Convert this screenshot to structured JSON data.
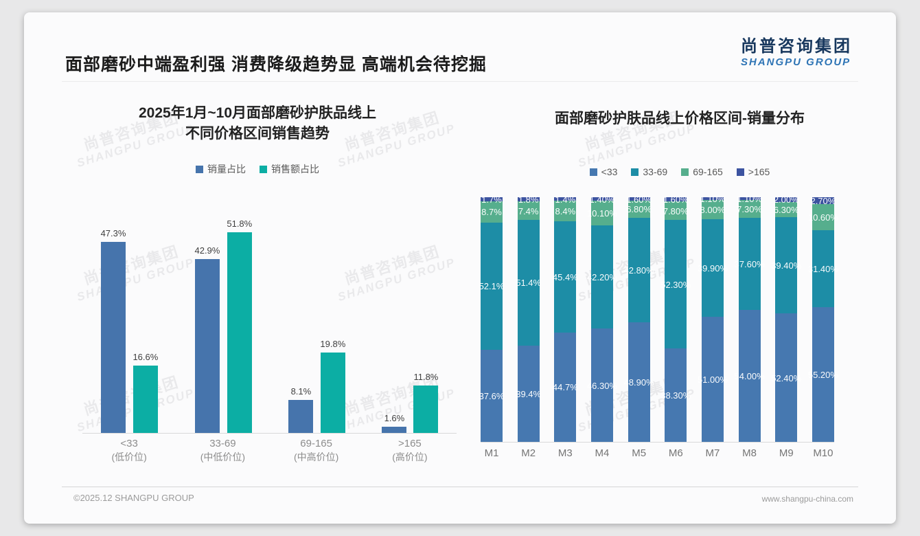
{
  "header": {
    "title": "面部磨砂中端盈利强 消费降级趋势显 高端机会待挖掘",
    "logo_cn": "尚普咨询集团",
    "logo_en": "SHANGPU GROUP"
  },
  "watermark": {
    "line1": "尚普咨询集团",
    "line2": "SHANGPU GROUP"
  },
  "footer": {
    "left": "©2025.12 SHANGPU GROUP",
    "right": "www.shangpu-china.com"
  },
  "chart_data": [
    {
      "type": "bar",
      "title_lines": [
        "2025年1月~10月面部磨砂护肤品线上",
        "不同价格区间销售趋势"
      ],
      "categories": [
        "<33",
        "33-69",
        "69-165",
        ">165"
      ],
      "category_sublabels": [
        "(低价位)",
        "(中低价位)",
        "(中高价位)",
        "(高价位)"
      ],
      "series": [
        {
          "name": "销量占比",
          "color": "#4674ac",
          "values": [
            47.3,
            42.9,
            8.1,
            1.6
          ],
          "labels": [
            "47.3%",
            "42.9%",
            "8.1%",
            "1.6%"
          ]
        },
        {
          "name": "销售额占比",
          "color": "#0caea4",
          "values": [
            16.6,
            51.8,
            19.8,
            11.8
          ],
          "labels": [
            "16.6%",
            "51.8%",
            "19.8%",
            "11.8%"
          ]
        }
      ],
      "xlabel": "",
      "ylabel": "",
      "ylim": [
        0,
        53
      ],
      "grid": false,
      "legend_position": "top"
    },
    {
      "type": "bar",
      "subtype": "stacked-100",
      "title": "面部磨砂护肤品线上价格区间-销量分布",
      "categories": [
        "M1",
        "M2",
        "M3",
        "M4",
        "M5",
        "M6",
        "M7",
        "M8",
        "M9",
        "M10"
      ],
      "series": [
        {
          "name": "<33",
          "color": "#4678b0",
          "values": [
            37.6,
            39.4,
            44.7,
            46.3,
            48.9,
            38.3,
            51.0,
            54.0,
            52.4,
            55.2
          ],
          "labels": [
            "37.6%",
            "39.4%",
            "44.7%",
            "46.30%",
            "48.90%",
            "38.30%",
            "51.00%",
            "54.00%",
            "52.40%",
            "55.20%"
          ]
        },
        {
          "name": "33-69",
          "color": "#1d8da6",
          "values": [
            52.1,
            51.4,
            45.4,
            42.2,
            42.8,
            52.3,
            39.9,
            37.6,
            39.4,
            31.4
          ],
          "labels": [
            "52.1%",
            "51.4%",
            "45.4%",
            "42.20%",
            "42.80%",
            "52.30%",
            "39.90%",
            "37.60%",
            "39.40%",
            "31.40%"
          ]
        },
        {
          "name": "69-165",
          "color": "#56ae8d",
          "values": [
            8.7,
            7.4,
            8.4,
            10.1,
            6.8,
            7.8,
            8.0,
            7.3,
            6.3,
            10.6
          ],
          "labels": [
            "8.7%",
            "7.4%",
            "8.4%",
            "10.10%",
            "6.80%",
            "7.80%",
            "8.00%",
            "7.30%",
            "6.30%",
            "10.60%"
          ]
        },
        {
          "name": ">165",
          "color": "#3c53a0",
          "values": [
            1.7,
            1.8,
            1.4,
            1.4,
            1.6,
            1.6,
            1.1,
            1.1,
            2.0,
            2.7
          ],
          "labels": [
            "1.7%",
            "1.8%",
            "1.4%",
            "1.40%",
            "1.60%",
            "1.60%",
            "1.10%",
            "1.10%",
            "2.00%",
            "2.70%"
          ]
        }
      ],
      "xlabel": "",
      "ylabel": "",
      "ylim": [
        0,
        100
      ],
      "grid": false,
      "legend_position": "top"
    }
  ]
}
